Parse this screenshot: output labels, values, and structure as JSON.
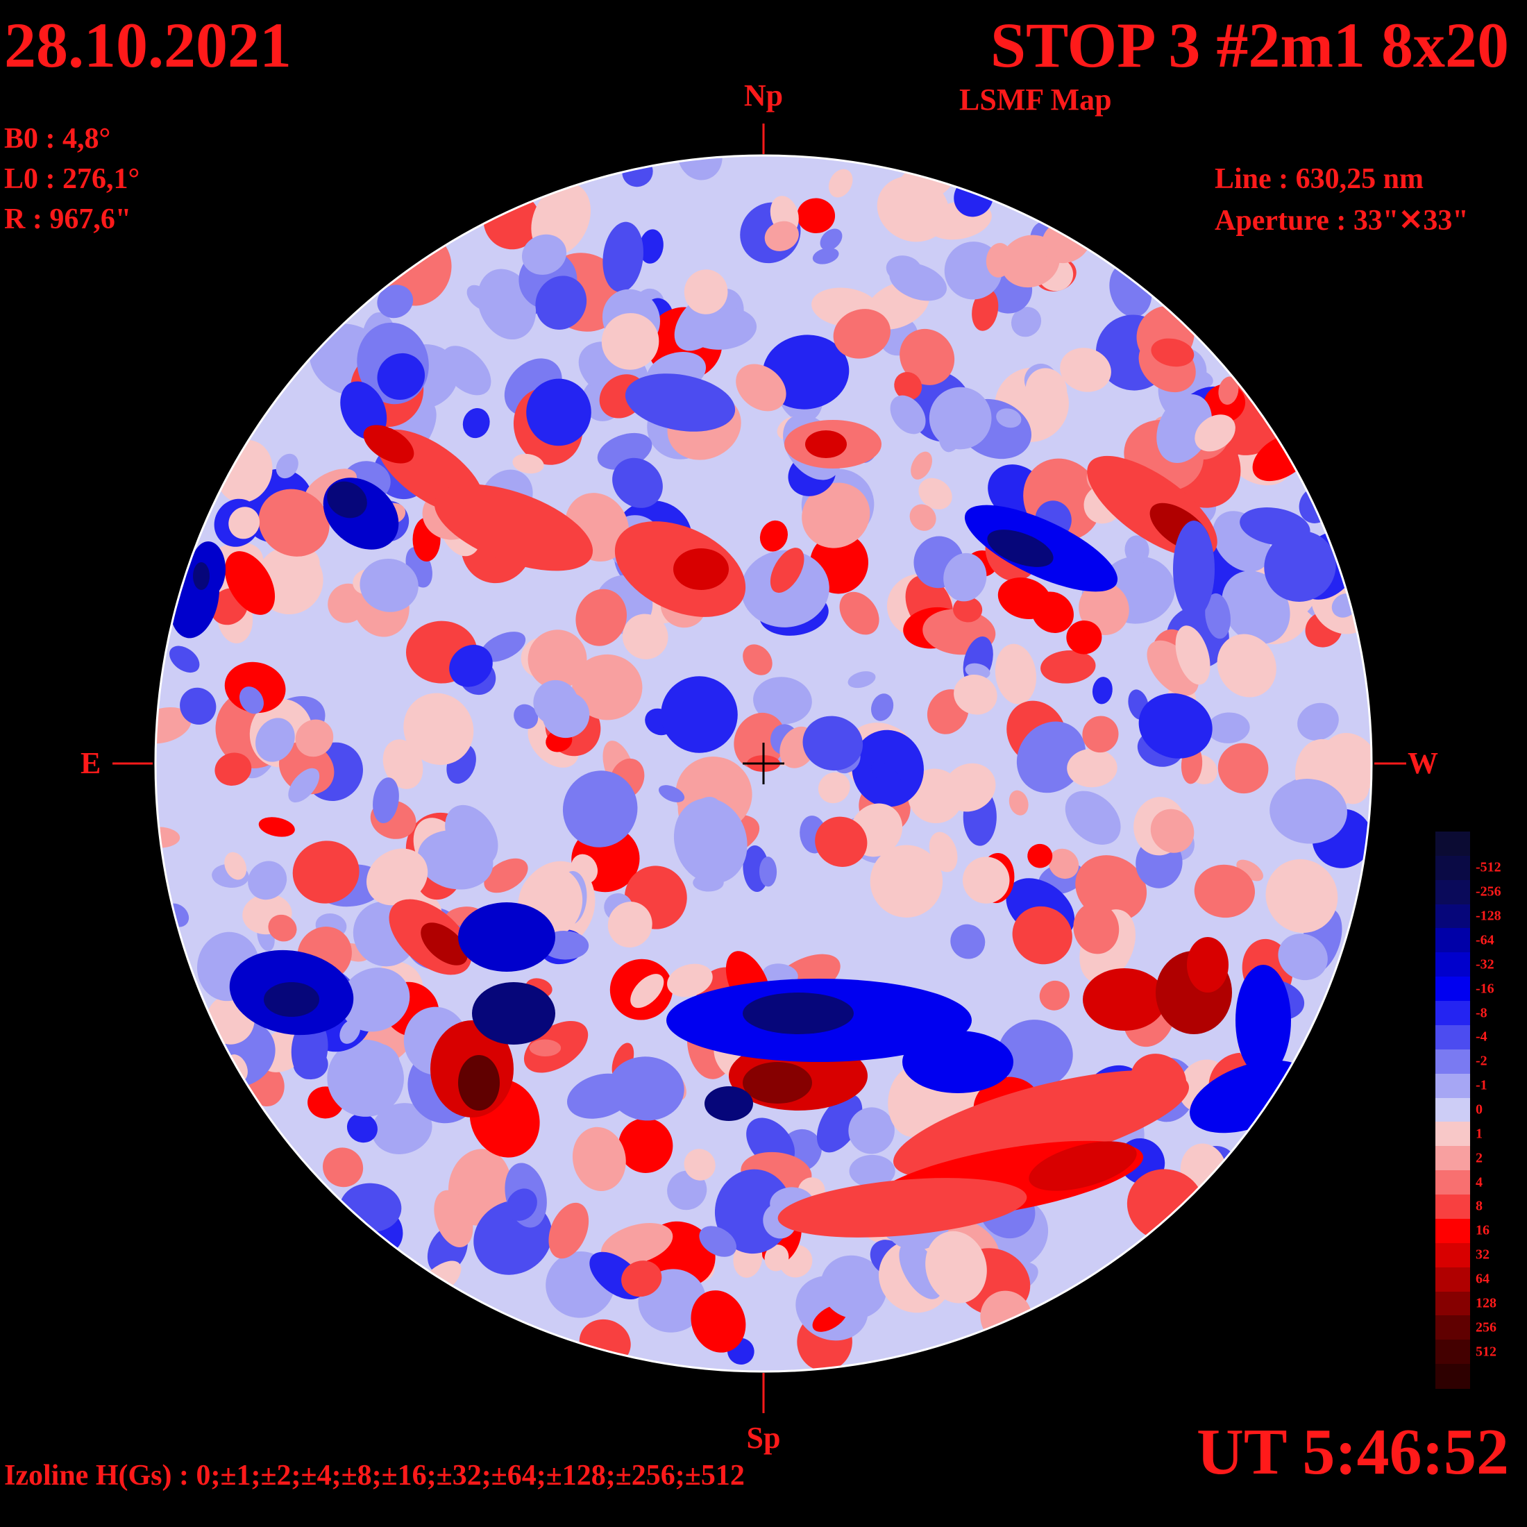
{
  "header": {
    "date": "28.10.2021",
    "title": "STOP 3 #2m1 8x20",
    "subtitle": "LSMF  Map"
  },
  "params": {
    "b0": "B0 : 4,8°",
    "l0": "L0 : 276,1°",
    "radius": "R  : 967,6\"",
    "line": "Line :  630,25 nm",
    "aperture": "Aperture : 33\"✕33\""
  },
  "orientation": {
    "north": "Np",
    "south": "Sp",
    "east": "E",
    "west": "W"
  },
  "time": "UT 5:46:52",
  "izoline": "Izoline H(Gs) : 0;±1;±2;±4;±8;±16;±32;±64;±128;±256;±512",
  "legend": {
    "levels": [
      {
        "label": "",
        "color": "#0b0b33"
      },
      {
        "label": "-512",
        "color": "#0a0a45"
      },
      {
        "label": "-256",
        "color": "#0a0a5a"
      },
      {
        "label": "-128",
        "color": "#06067a"
      },
      {
        "label": "-64",
        "color": "#0000a8"
      },
      {
        "label": "-32",
        "color": "#0000cc"
      },
      {
        "label": "-16",
        "color": "#0000f0"
      },
      {
        "label": "-8",
        "color": "#2424f2"
      },
      {
        "label": "-4",
        "color": "#4c4cf0"
      },
      {
        "label": "-2",
        "color": "#7a7af2"
      },
      {
        "label": "-1",
        "color": "#a6a6f4"
      },
      {
        "label": "0",
        "color": "#cdcdf6"
      },
      {
        "label": "1",
        "color": "#f8c8c8"
      },
      {
        "label": "2",
        "color": "#f8a0a0"
      },
      {
        "label": "4",
        "color": "#f87070"
      },
      {
        "label": "8",
        "color": "#f84040"
      },
      {
        "label": "16",
        "color": "#ff0000"
      },
      {
        "label": "32",
        "color": "#d80000"
      },
      {
        "label": "64",
        "color": "#b00000"
      },
      {
        "label": "128",
        "color": "#860000"
      },
      {
        "label": "256",
        "color": "#600000"
      },
      {
        "label": "512",
        "color": "#440000"
      },
      {
        "label": "",
        "color": "#2e0000"
      }
    ]
  },
  "colors": {
    "text": "#ff1a1a",
    "background": "#000000",
    "isoline": "#ffffff"
  }
}
